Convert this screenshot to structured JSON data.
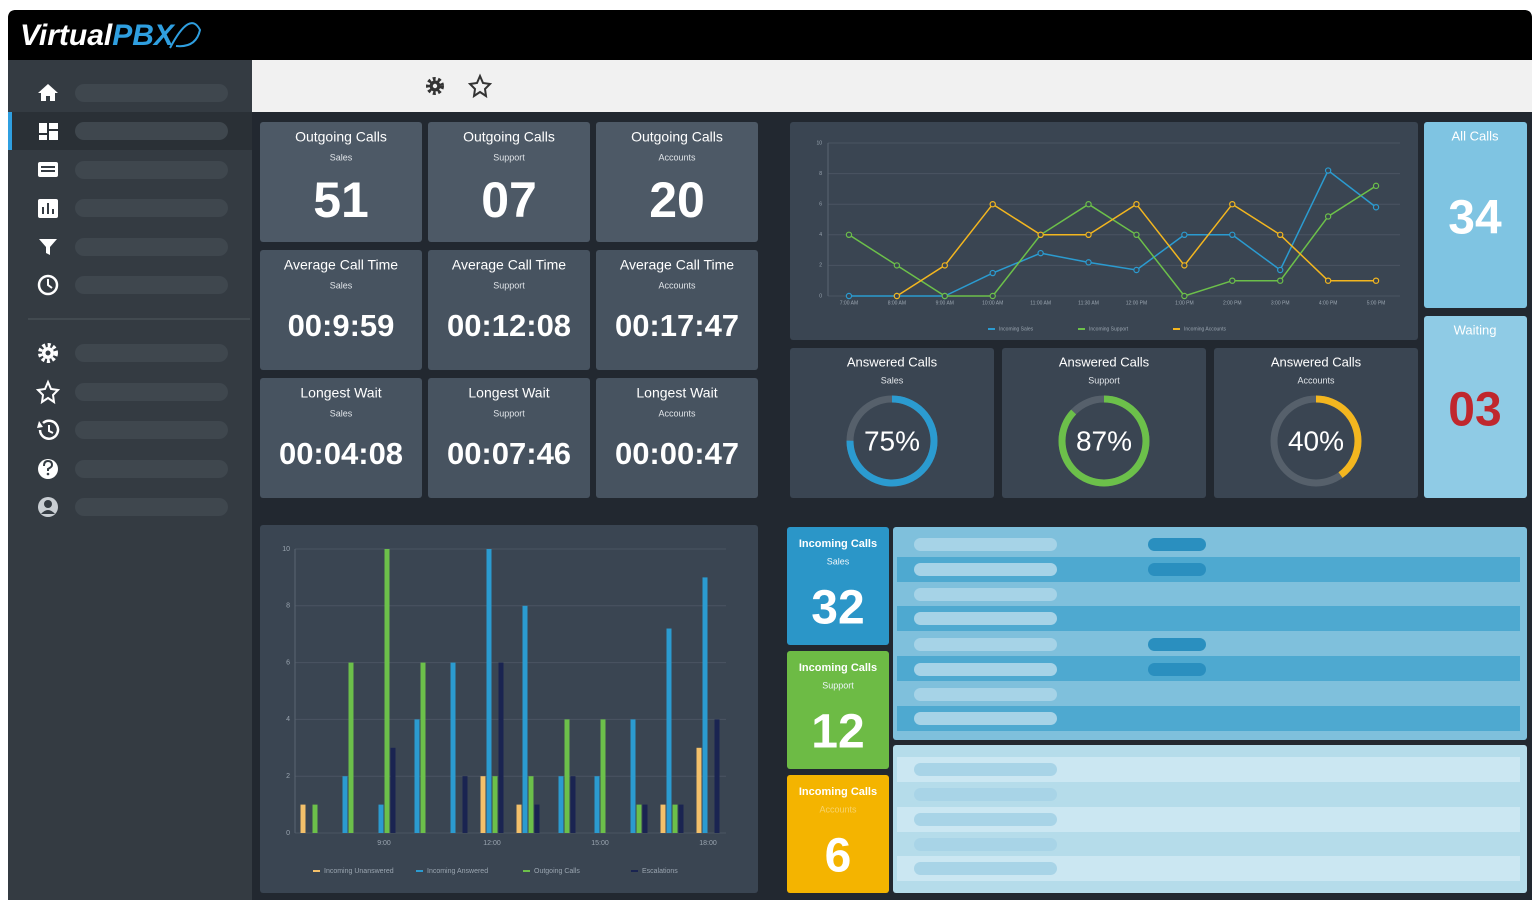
{
  "header": {
    "logo_main": "Virtual",
    "logo_accent": "PBX"
  },
  "tiles": [
    {
      "title": "Outgoing Calls",
      "sub": "Sales",
      "value": "51"
    },
    {
      "title": "Outgoing Calls",
      "sub": "Support",
      "value": "07"
    },
    {
      "title": "Outgoing Calls",
      "sub": "Accounts",
      "value": "20"
    },
    {
      "title": "Average Call Time",
      "sub": "Sales",
      "value": "00:9:59"
    },
    {
      "title": "Average Call Time",
      "sub": "Support",
      "value": "00:12:08"
    },
    {
      "title": "Average Call Time",
      "sub": "Accounts",
      "value": "00:17:47"
    },
    {
      "title": "Longest Wait",
      "sub": "Sales",
      "value": "00:04:08"
    },
    {
      "title": "Longest Wait",
      "sub": "Support",
      "value": "00:07:46"
    },
    {
      "title": "Longest Wait",
      "sub": "Accounts",
      "value": "00:00:47"
    }
  ],
  "totals": [
    {
      "title": "All Calls",
      "value": "34"
    },
    {
      "title": "Waiting",
      "value": "03"
    }
  ],
  "gauges": [
    {
      "title": "Answered Calls",
      "sub": "Sales",
      "value": 75,
      "value_label": "75%",
      "color": "#2b9bd0"
    },
    {
      "title": "Answered Calls",
      "sub": "Support",
      "value": 87,
      "value_label": "87%",
      "color": "#6cc04a"
    },
    {
      "title": "Answered Calls",
      "sub": "Accounts",
      "value": 40,
      "value_label": "40%",
      "color": "#f3b61f"
    }
  ],
  "incoming": [
    {
      "title": "Incoming Calls",
      "sub": "Sales",
      "value": "32",
      "color": "#2b96c8"
    },
    {
      "title": "Incoming Calls",
      "sub": "Support",
      "value": "12",
      "color": "#6dbb45"
    },
    {
      "title": "Incoming Calls",
      "sub": "Accounts",
      "value": "6",
      "color": "#f4b400"
    }
  ],
  "chart_data": [
    {
      "type": "line",
      "x": [
        "7:00 AM",
        "8:00 AM",
        "9:00 AM",
        "10:00 AM",
        "11:00 AM",
        "11:30 AM",
        "12:00 PM",
        "1:00 PM",
        "2:00 PM",
        "3:00 PM",
        "4:00 PM",
        "5:00 PM"
      ],
      "series": [
        {
          "name": "Incoming Sales",
          "color": "#2b9bd0",
          "values": [
            0,
            0,
            0,
            1.5,
            2.8,
            2.2,
            1.7,
            4,
            4,
            1.7,
            8.2,
            5.8
          ]
        },
        {
          "name": "Incoming Support",
          "color": "#6cc04a",
          "values": [
            4,
            2,
            0,
            0,
            4,
            6,
            4,
            0,
            1,
            1,
            5.2,
            7.2
          ]
        },
        {
          "name": "Incoming Accounts",
          "color": "#f3b61f",
          "values": [
            null,
            0,
            2,
            6,
            4,
            4,
            6,
            2,
            6,
            4,
            1,
            1
          ]
        }
      ],
      "ylim": [
        0,
        10
      ],
      "yticks": [
        0,
        2,
        4,
        6,
        8,
        10
      ],
      "grid": true
    },
    {
      "type": "bar",
      "categories": [
        null,
        null,
        "9:00",
        null,
        null,
        "12:00",
        null,
        null,
        "15:00",
        null,
        null,
        "18:00"
      ],
      "series": [
        {
          "name": "Incoming Unanswered",
          "color": "#f3c06a",
          "values": [
            1,
            0,
            0,
            0,
            0,
            2,
            1,
            0,
            0,
            0,
            1,
            3
          ]
        },
        {
          "name": "Incoming Answered",
          "color": "#2b9bd0",
          "values": [
            0,
            2,
            1,
            4,
            6,
            10,
            8,
            2,
            2,
            4,
            7.2,
            9
          ]
        },
        {
          "name": "Outgoing Calls",
          "color": "#6cc04a",
          "values": [
            1,
            6,
            10,
            6,
            0,
            2,
            2,
            4,
            4,
            1,
            1,
            0
          ]
        },
        {
          "name": "Escalations",
          "color": "#1a2451",
          "values": [
            0,
            0,
            3,
            0,
            2,
            6,
            1,
            2,
            0,
            1,
            1,
            4
          ]
        }
      ],
      "ylim": [
        0,
        10
      ],
      "yticks": [
        0,
        2,
        4,
        6,
        8,
        10
      ],
      "grid": true
    }
  ]
}
